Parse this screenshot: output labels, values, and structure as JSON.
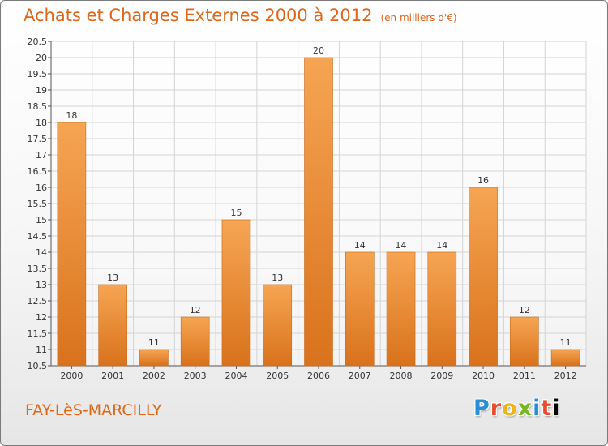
{
  "header": {
    "title": "Achats et Charges Externes 2000 à 2012",
    "unit": "(en milliers d'€)"
  },
  "footer": {
    "commune": "FAY-LèS-MARCILLY",
    "logo_letters": [
      "P",
      "r",
      "o",
      "x",
      "i",
      "t",
      "i"
    ]
  },
  "colors": {
    "title": "#e0661a",
    "bar_light": "#f6a553",
    "bar_dark": "#d9721c",
    "grid": "#d4d4d4"
  },
  "chart_data": {
    "type": "bar",
    "categories": [
      "2000",
      "2001",
      "2002",
      "2003",
      "2004",
      "2005",
      "2006",
      "2007",
      "2008",
      "2009",
      "2010",
      "2011",
      "2012"
    ],
    "values": [
      18,
      13,
      11,
      12,
      15,
      13,
      20,
      14,
      14,
      14,
      16,
      12,
      11
    ],
    "ylim": [
      10.5,
      20.5
    ],
    "yticks": [
      "10.5",
      "11",
      "11.5",
      "12",
      "12.5",
      "13",
      "13.5",
      "14",
      "14.5",
      "15",
      "15.5",
      "16",
      "16.5",
      "17",
      "17.5",
      "18",
      "18.5",
      "19",
      "19.5",
      "20",
      "20.5"
    ],
    "grid": true,
    "legend": "none"
  }
}
